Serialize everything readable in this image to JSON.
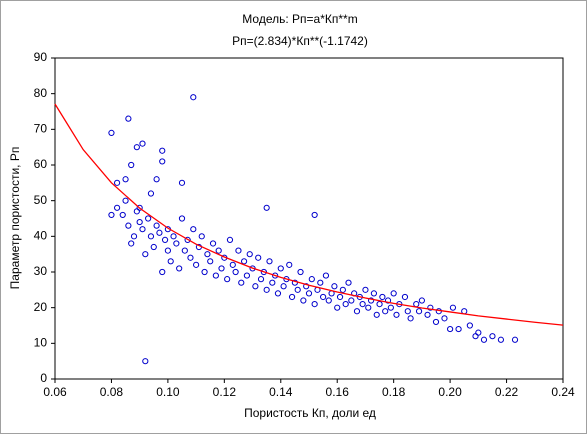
{
  "chart_data": {
    "type": "scatter",
    "title": "Модель: Рп=а*Кп**m",
    "subtitle": "Рп=(2.834)*Кп**(-1.1742)",
    "x_label": "Пористость Кп, доли ед",
    "y_label": "Параметр пористости, Рп",
    "xlim": [
      0.06,
      0.24
    ],
    "ylim": [
      0,
      90
    ],
    "xticks": [
      0.06,
      0.08,
      {
        "value": 0.1,
        "label": "0.10"
      },
      0.12,
      0.14,
      0.16,
      0.18,
      {
        "value": 0.2,
        "label": "0.20"
      },
      0.22,
      0.24
    ],
    "yticks": [
      0,
      10,
      20,
      30,
      40,
      50,
      60,
      70,
      80,
      90
    ],
    "points": {
      "color": "#0000cc",
      "x": [
        0.092,
        0.109,
        0.086,
        0.08,
        0.091,
        0.089,
        0.098,
        0.098,
        0.087,
        0.082,
        0.085,
        0.094,
        0.105,
        0.096,
        0.152,
        0.135,
        0.223,
        0.08,
        0.082,
        0.084,
        0.085,
        0.086,
        0.087,
        0.088,
        0.089,
        0.09,
        0.09,
        0.091,
        0.092,
        0.093,
        0.094,
        0.095,
        0.096,
        0.097,
        0.098,
        0.099,
        0.1,
        0.1,
        0.101,
        0.102,
        0.103,
        0.104,
        0.105,
        0.106,
        0.107,
        0.108,
        0.109,
        0.11,
        0.111,
        0.112,
        0.113,
        0.114,
        0.115,
        0.116,
        0.117,
        0.118,
        0.119,
        0.12,
        0.121,
        0.122,
        0.123,
        0.124,
        0.125,
        0.126,
        0.127,
        0.128,
        0.129,
        0.13,
        0.131,
        0.132,
        0.133,
        0.134,
        0.135,
        0.136,
        0.137,
        0.138,
        0.139,
        0.14,
        0.141,
        0.142,
        0.143,
        0.144,
        0.145,
        0.146,
        0.147,
        0.148,
        0.149,
        0.15,
        0.151,
        0.152,
        0.153,
        0.154,
        0.155,
        0.156,
        0.157,
        0.158,
        0.159,
        0.16,
        0.161,
        0.162,
        0.163,
        0.164,
        0.165,
        0.166,
        0.167,
        0.168,
        0.169,
        0.17,
        0.171,
        0.172,
        0.173,
        0.174,
        0.175,
        0.176,
        0.177,
        0.178,
        0.179,
        0.18,
        0.181,
        0.182,
        0.184,
        0.185,
        0.186,
        0.188,
        0.189,
        0.19,
        0.192,
        0.193,
        0.195,
        0.196,
        0.198,
        0.2,
        0.201,
        0.203,
        0.205,
        0.207,
        0.209,
        0.21,
        0.212,
        0.215,
        0.218
      ],
      "y": [
        5,
        79,
        73,
        69,
        66,
        65,
        64,
        61,
        60,
        55,
        56,
        52,
        55,
        56,
        46,
        48,
        11,
        46,
        48,
        46,
        50,
        43,
        38,
        40,
        47,
        44,
        48,
        42,
        35,
        45,
        40,
        37,
        43,
        41,
        30,
        39,
        42,
        36,
        33,
        40,
        38,
        31,
        45,
        36,
        39,
        34,
        42,
        32,
        37,
        40,
        30,
        35,
        33,
        38,
        29,
        36,
        31,
        34,
        28,
        39,
        32,
        30,
        36,
        27,
        33,
        29,
        35,
        31,
        26,
        34,
        28,
        30,
        25,
        33,
        27,
        29,
        24,
        31,
        26,
        28,
        32,
        23,
        27,
        25,
        30,
        22,
        26,
        24,
        28,
        21,
        25,
        27,
        23,
        29,
        22,
        24,
        26,
        20,
        23,
        25,
        21,
        27,
        22,
        24,
        19,
        23,
        21,
        25,
        20,
        22,
        24,
        18,
        21,
        23,
        19,
        22,
        20,
        24,
        18,
        21,
        23,
        19,
        17,
        21,
        19,
        22,
        18,
        20,
        16,
        19,
        17,
        14,
        20,
        14,
        19,
        15,
        12,
        13,
        11,
        12,
        11
      ]
    },
    "fit": {
      "color": "#ff0000",
      "x": [
        0.06,
        0.07,
        0.08,
        0.09,
        0.1,
        0.11,
        0.12,
        0.13,
        0.14,
        0.15,
        0.16,
        0.17,
        0.18,
        0.19,
        0.2,
        0.21,
        0.22,
        0.23,
        0.24
      ],
      "y": [
        77.1,
        64.3,
        55.0,
        47.9,
        42.3,
        37.8,
        34.2,
        31.1,
        28.5,
        26.3,
        24.4,
        22.7,
        21.2,
        19.9,
        18.8,
        17.7,
        16.8,
        15.9,
        15.1
      ]
    }
  }
}
